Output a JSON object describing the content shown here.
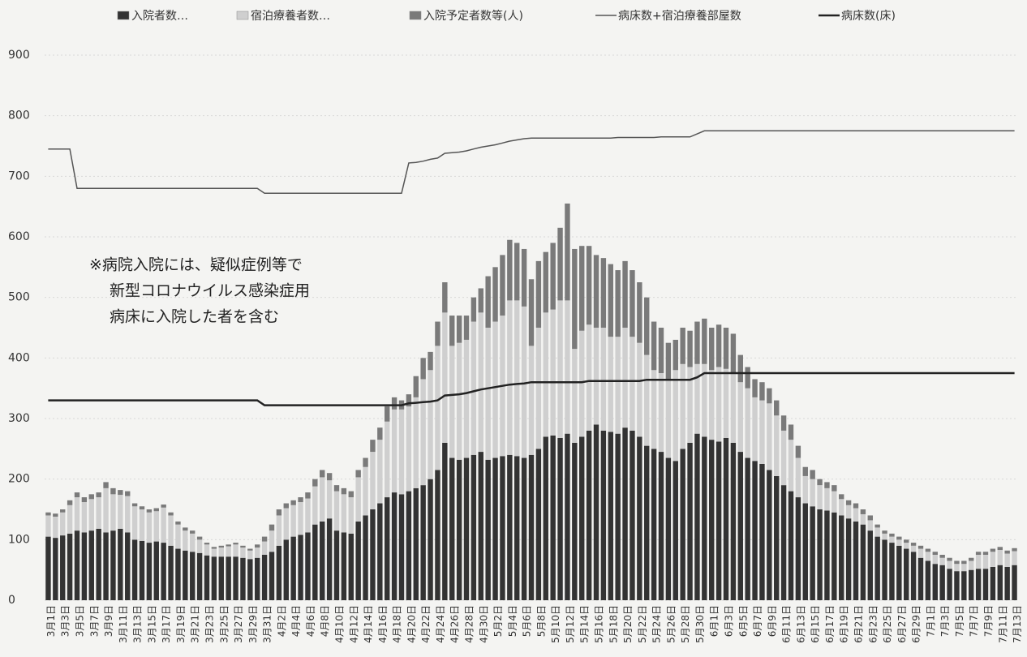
{
  "chart_data": {
    "type": "bar",
    "stacked": true,
    "annotation": [
      "※病院入院には、疑似症例等で",
      "新型コロナウイルス感染症用",
      "病床に入院した者を含む"
    ],
    "categories": [
      "3月1日",
      null,
      "3月3日",
      null,
      "3月5日",
      null,
      "3月7日",
      null,
      "3月9日",
      null,
      "3月11日",
      null,
      "3月13日",
      null,
      "3月15日",
      null,
      "3月17日",
      null,
      "3月19日",
      null,
      "3月21日",
      null,
      "3月23日",
      null,
      "3月25日",
      null,
      "3月27日",
      null,
      "3月29日",
      null,
      "3月31日",
      null,
      "4月2日",
      null,
      "4月4日",
      null,
      "4月6日",
      null,
      "4月8日",
      null,
      "4月10日",
      null,
      "4月12日",
      null,
      "4月14日",
      null,
      "4月16日",
      null,
      "4月18日",
      null,
      "4月20日",
      null,
      "4月22日",
      null,
      "4月24日",
      null,
      "4月26日",
      null,
      "4月28日",
      null,
      "4月30日",
      null,
      "5月2日",
      null,
      "5月4日",
      null,
      "5月6日",
      null,
      "5月8日",
      null,
      "5月10日",
      null,
      "5月12日",
      null,
      "5月14日",
      null,
      "5月16日",
      null,
      "5月18日",
      null,
      "5月20日",
      null,
      "5月22日",
      null,
      "5月24日",
      null,
      "5月26日",
      null,
      "5月28日",
      null,
      "5月30日",
      null,
      "6月1日",
      null,
      "6月3日",
      null,
      "6月5日",
      null,
      "6月7日",
      null,
      "6月9日",
      null,
      "6月11日",
      null,
      "6月13日",
      null,
      "6月15日",
      null,
      "6月17日",
      null,
      "6月19日",
      null,
      "6月21日",
      null,
      "6月23日",
      null,
      "6月25日",
      null,
      "6月27日",
      null,
      "6月29日",
      null,
      "7月1日",
      null,
      "7月3日",
      null,
      "7月5日",
      null,
      "7月7日",
      null,
      "7月9日",
      null,
      "7月11日",
      null,
      "7月13日"
    ],
    "series": [
      {
        "name": "入院者数…",
        "type": "bar",
        "color": "#333333",
        "values": [
          105,
          103,
          107,
          110,
          115,
          112,
          115,
          118,
          112,
          115,
          118,
          112,
          100,
          98,
          95,
          97,
          95,
          90,
          85,
          82,
          80,
          78,
          74,
          72,
          72,
          72,
          72,
          70,
          68,
          70,
          75,
          80,
          90,
          100,
          105,
          108,
          112,
          125,
          130,
          135,
          115,
          112,
          110,
          130,
          140,
          150,
          160,
          170,
          178,
          175,
          180,
          185,
          190,
          200,
          215,
          260,
          235,
          232,
          235,
          240,
          245,
          232,
          235,
          238,
          240,
          238,
          235,
          240,
          250,
          270,
          272,
          268,
          275,
          260,
          270,
          280,
          290,
          280,
          278,
          275,
          285,
          280,
          270,
          255,
          250,
          245,
          235,
          230,
          250,
          260,
          275,
          270,
          265,
          262,
          268,
          260,
          245,
          235,
          230,
          225,
          215,
          205,
          190,
          180,
          170,
          160,
          155,
          150,
          148,
          145,
          140,
          135,
          130,
          125,
          115,
          105,
          100,
          95,
          90,
          85,
          80,
          70,
          65,
          60,
          58,
          52,
          48,
          48,
          50,
          52,
          52,
          55,
          58,
          55,
          58
        ]
      },
      {
        "name": "宿泊療養者数…",
        "type": "bar",
        "color": "#cfcfcf",
        "values": [
          35,
          35,
          38,
          47,
          55,
          50,
          52,
          52,
          73,
          60,
          56,
          60,
          55,
          52,
          50,
          50,
          58,
          50,
          40,
          33,
          30,
          22,
          18,
          13,
          15,
          17,
          20,
          17,
          14,
          17,
          22,
          35,
          50,
          52,
          52,
          54,
          56,
          63,
          73,
          63,
          65,
          63,
          60,
          73,
          80,
          95,
          105,
          125,
          137,
          140,
          140,
          150,
          175,
          180,
          205,
          215,
          185,
          193,
          195,
          220,
          230,
          218,
          225,
          232,
          255,
          257,
          250,
          180,
          200,
          205,
          208,
          227,
          220,
          155,
          175,
          175,
          160,
          170,
          157,
          160,
          165,
          155,
          155,
          150,
          130,
          130,
          130,
          150,
          140,
          125,
          115,
          120,
          115,
          123,
          114,
          115,
          115,
          115,
          105,
          105,
          110,
          100,
          90,
          85,
          65,
          45,
          45,
          40,
          37,
          35,
          27,
          22,
          22,
          17,
          17,
          15,
          10,
          10,
          10,
          10,
          10,
          15,
          15,
          15,
          12,
          13,
          12,
          12,
          15,
          23,
          23,
          25,
          25,
          22,
          23
        ]
      },
      {
        "name": "入院予定者数等(人)",
        "type": "bar",
        "color": "#7a7a7a",
        "values": [
          5,
          5,
          5,
          8,
          8,
          8,
          8,
          8,
          10,
          10,
          8,
          8,
          5,
          5,
          5,
          5,
          5,
          5,
          5,
          5,
          5,
          5,
          3,
          3,
          3,
          3,
          3,
          3,
          3,
          5,
          8,
          10,
          10,
          8,
          8,
          8,
          10,
          12,
          12,
          12,
          10,
          10,
          10,
          12,
          15,
          20,
          20,
          25,
          20,
          15,
          20,
          35,
          35,
          30,
          40,
          50,
          50,
          45,
          40,
          40,
          40,
          85,
          90,
          100,
          100,
          95,
          95,
          110,
          110,
          100,
          110,
          120,
          160,
          165,
          140,
          130,
          120,
          115,
          120,
          110,
          110,
          110,
          100,
          95,
          80,
          75,
          60,
          50,
          60,
          60,
          70,
          75,
          70,
          70,
          68,
          65,
          45,
          35,
          30,
          30,
          25,
          25,
          25,
          25,
          20,
          15,
          15,
          10,
          10,
          10,
          8,
          8,
          8,
          8,
          8,
          5,
          5,
          5,
          5,
          5,
          5,
          5,
          5,
          5,
          5,
          5,
          5,
          5,
          5,
          5,
          5,
          5,
          5,
          5,
          5
        ]
      },
      {
        "name": "病床数+宿泊療養部屋数",
        "type": "line",
        "color": "#555555",
        "width": 1.5,
        "values": [
          745,
          745,
          745,
          745,
          680,
          680,
          680,
          680,
          680,
          680,
          680,
          680,
          680,
          680,
          680,
          680,
          680,
          680,
          680,
          680,
          680,
          680,
          680,
          680,
          680,
          680,
          680,
          680,
          680,
          680,
          672,
          672,
          672,
          672,
          672,
          672,
          672,
          672,
          672,
          672,
          672,
          672,
          672,
          672,
          672,
          672,
          672,
          672,
          672,
          672,
          722,
          723,
          725,
          728,
          730,
          738,
          739,
          740,
          742,
          745,
          748,
          750,
          752,
          755,
          758,
          760,
          762,
          763,
          763,
          763,
          763,
          763,
          763,
          763,
          763,
          763,
          763,
          763,
          763,
          764,
          764,
          764,
          764,
          764,
          764,
          765,
          765,
          765,
          765,
          765,
          770,
          775,
          775,
          775,
          775,
          775,
          775,
          775,
          775,
          775,
          775,
          775,
          775,
          775,
          775,
          775,
          775,
          775,
          775,
          775,
          775,
          775,
          775,
          775,
          775,
          775,
          775,
          775,
          775,
          775,
          775,
          775,
          775,
          775,
          775,
          775,
          775,
          775,
          775,
          775,
          775,
          775,
          775,
          775,
          775
        ]
      },
      {
        "name": "病床数(床)",
        "type": "line",
        "color": "#222222",
        "width": 2.5,
        "values": [
          330,
          330,
          330,
          330,
          330,
          330,
          330,
          330,
          330,
          330,
          330,
          330,
          330,
          330,
          330,
          330,
          330,
          330,
          330,
          330,
          330,
          330,
          330,
          330,
          330,
          330,
          330,
          330,
          330,
          330,
          322,
          322,
          322,
          322,
          322,
          322,
          322,
          322,
          322,
          322,
          322,
          322,
          322,
          322,
          322,
          322,
          322,
          322,
          322,
          322,
          325,
          326,
          327,
          328,
          330,
          338,
          339,
          340,
          342,
          345,
          348,
          350,
          352,
          354,
          356,
          357,
          358,
          360,
          360,
          360,
          360,
          360,
          360,
          360,
          360,
          362,
          362,
          362,
          362,
          362,
          362,
          362,
          362,
          364,
          364,
          364,
          364,
          364,
          364,
          364,
          368,
          375,
          375,
          375,
          375,
          375,
          375,
          375,
          375,
          375,
          375,
          375,
          375,
          375,
          375,
          375,
          375,
          375,
          375,
          375,
          375,
          375,
          375,
          375,
          375,
          375,
          375,
          375,
          375,
          375,
          375,
          375,
          375,
          375,
          375,
          375,
          375,
          375,
          375,
          375,
          375,
          375,
          375,
          375,
          375
        ]
      }
    ],
    "ylim": [
      0,
      900
    ],
    "yticks": [
      0,
      100,
      200,
      300,
      400,
      500,
      600,
      700,
      800,
      900
    ],
    "grid": true
  }
}
